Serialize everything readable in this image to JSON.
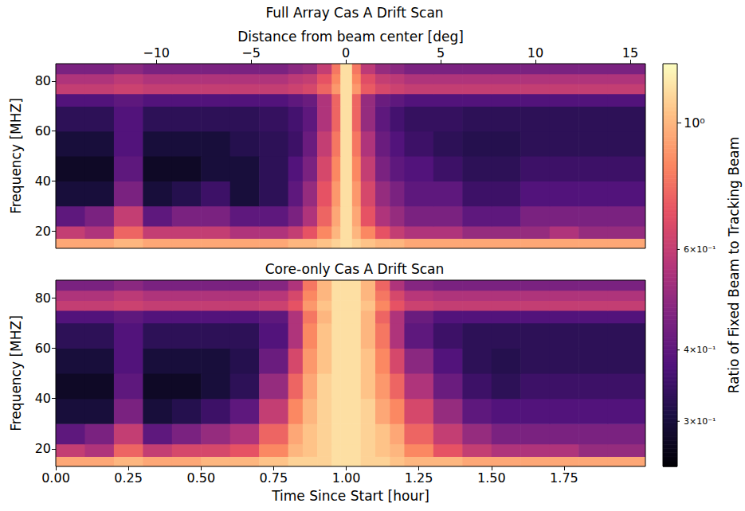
{
  "chart_data": [
    {
      "type": "heatmap",
      "title": "Full Array Cas A Drift Scan",
      "x2label": "Distance from beam center [deg]",
      "ylabel": "Frequency [MHZ]",
      "xlim": [
        0,
        2.03
      ],
      "x2lim": [
        -15.3,
        15.8
      ],
      "x2ticks": [
        {
          "value": -10,
          "label": "−10"
        },
        {
          "value": -5,
          "label": "−5"
        },
        0,
        5,
        10,
        15
      ],
      "ylim": [
        13,
        87
      ],
      "yticks": [
        20,
        40,
        60,
        80
      ],
      "x_edges": [
        0,
        0.1,
        0.2,
        0.3,
        0.4,
        0.5,
        0.6,
        0.7,
        0.8,
        0.85,
        0.9,
        0.95,
        0.98,
        1.02,
        1.05,
        1.1,
        1.15,
        1.2,
        1.3,
        1.4,
        1.5,
        1.6,
        1.7,
        1.8,
        1.9,
        2.03
      ],
      "y_edges": [
        13,
        17,
        22,
        30,
        40,
        50,
        60,
        70,
        75,
        79,
        83,
        87
      ],
      "values": [
        [
          0.95,
          0.95,
          1.0,
          0.95,
          0.95,
          0.95,
          0.95,
          0.95,
          1.0,
          1.0,
          1.05,
          1.1,
          1.15,
          1.1,
          1.05,
          1.0,
          1.0,
          0.95,
          0.95,
          0.95,
          0.95,
          0.95,
          0.95,
          0.95,
          0.95
        ],
        [
          0.6,
          0.55,
          0.75,
          0.6,
          0.6,
          0.6,
          0.55,
          0.55,
          0.6,
          0.7,
          0.85,
          1.0,
          1.15,
          1.0,
          0.85,
          0.7,
          0.6,
          0.55,
          0.55,
          0.5,
          0.5,
          0.5,
          0.55,
          0.5,
          0.5
        ],
        [
          0.4,
          0.45,
          0.6,
          0.4,
          0.45,
          0.45,
          0.4,
          0.4,
          0.45,
          0.55,
          0.75,
          0.95,
          1.15,
          0.95,
          0.7,
          0.55,
          0.5,
          0.45,
          0.45,
          0.4,
          0.4,
          0.45,
          0.45,
          0.45,
          0.45
        ],
        [
          0.3,
          0.3,
          0.45,
          0.3,
          0.32,
          0.35,
          0.3,
          0.33,
          0.4,
          0.5,
          0.7,
          0.9,
          1.15,
          0.9,
          0.65,
          0.5,
          0.45,
          0.4,
          0.4,
          0.35,
          0.35,
          0.38,
          0.38,
          0.38,
          0.38
        ],
        [
          0.28,
          0.28,
          0.4,
          0.28,
          0.28,
          0.3,
          0.3,
          0.33,
          0.38,
          0.45,
          0.65,
          0.85,
          1.15,
          0.85,
          0.6,
          0.45,
          0.4,
          0.38,
          0.35,
          0.33,
          0.33,
          0.35,
          0.35,
          0.35,
          0.35
        ],
        [
          0.3,
          0.3,
          0.38,
          0.3,
          0.3,
          0.3,
          0.32,
          0.33,
          0.35,
          0.42,
          0.6,
          0.8,
          1.15,
          0.8,
          0.55,
          0.42,
          0.38,
          0.35,
          0.33,
          0.32,
          0.32,
          0.33,
          0.33,
          0.33,
          0.33
        ],
        [
          0.33,
          0.33,
          0.38,
          0.33,
          0.33,
          0.33,
          0.33,
          0.34,
          0.36,
          0.4,
          0.55,
          0.75,
          1.15,
          0.75,
          0.5,
          0.4,
          0.36,
          0.34,
          0.34,
          0.33,
          0.33,
          0.33,
          0.33,
          0.33,
          0.33
        ],
        [
          0.38,
          0.38,
          0.4,
          0.38,
          0.38,
          0.38,
          0.38,
          0.38,
          0.4,
          0.42,
          0.55,
          0.75,
          1.15,
          0.75,
          0.5,
          0.42,
          0.4,
          0.38,
          0.38,
          0.38,
          0.38,
          0.38,
          0.38,
          0.38,
          0.38
        ],
        [
          0.6,
          0.6,
          0.62,
          0.6,
          0.6,
          0.6,
          0.6,
          0.6,
          0.62,
          0.65,
          0.75,
          0.9,
          1.15,
          0.9,
          0.72,
          0.65,
          0.62,
          0.6,
          0.6,
          0.6,
          0.6,
          0.6,
          0.6,
          0.6,
          0.6
        ],
        [
          0.55,
          0.55,
          0.58,
          0.55,
          0.55,
          0.55,
          0.55,
          0.55,
          0.58,
          0.6,
          0.7,
          0.85,
          1.15,
          0.85,
          0.68,
          0.6,
          0.58,
          0.55,
          0.55,
          0.55,
          0.55,
          0.55,
          0.55,
          0.55,
          0.55
        ],
        [
          0.45,
          0.45,
          0.48,
          0.45,
          0.45,
          0.45,
          0.45,
          0.45,
          0.48,
          0.5,
          0.6,
          0.8,
          1.15,
          0.8,
          0.58,
          0.5,
          0.48,
          0.45,
          0.45,
          0.45,
          0.45,
          0.45,
          0.45,
          0.45,
          0.45
        ]
      ],
      "colorbar": {
        "label": "Ratio of Fixed Beam to Tracking Beam",
        "log": true,
        "range": [
          0.25,
          1.27
        ],
        "ticks": [
          {
            "value": 1,
            "label": "10⁰"
          },
          {
            "value": 0.6,
            "label": "6×10⁻¹"
          },
          {
            "value": 0.4,
            "label": "4×10⁻¹"
          },
          {
            "value": 0.3,
            "label": "3×10⁻¹"
          }
        ]
      }
    },
    {
      "type": "heatmap",
      "title": "Core-only Cas A Drift Scan",
      "xlabel": "Time Since Start [hour]",
      "ylabel": "Frequency [MHZ]",
      "xlim": [
        0,
        2.03
      ],
      "xticks": [
        {
          "value": 0,
          "label": "0.00"
        },
        {
          "value": 0.25,
          "label": "0.25"
        },
        {
          "value": 0.5,
          "label": "0.50"
        },
        {
          "value": 0.75,
          "label": "0.75"
        },
        {
          "value": 1,
          "label": "1.00"
        },
        {
          "value": 1.25,
          "label": "1.25"
        },
        {
          "value": 1.5,
          "label": "1.50"
        },
        {
          "value": 1.75,
          "label": "1.75"
        }
      ],
      "ylim": [
        13,
        87
      ],
      "yticks": [
        20,
        40,
        60,
        80
      ],
      "x_edges": [
        0,
        0.1,
        0.2,
        0.3,
        0.4,
        0.5,
        0.6,
        0.7,
        0.8,
        0.85,
        0.9,
        0.95,
        0.98,
        1.02,
        1.05,
        1.1,
        1.15,
        1.2,
        1.3,
        1.4,
        1.5,
        1.6,
        1.7,
        1.8,
        1.9,
        2.03
      ],
      "y_edges": [
        13,
        17,
        22,
        30,
        40,
        50,
        60,
        70,
        75,
        79,
        83,
        87
      ],
      "values": [
        [
          0.95,
          0.95,
          1.0,
          0.95,
          0.95,
          1.0,
          1.0,
          1.05,
          1.1,
          1.1,
          1.1,
          1.15,
          1.15,
          1.15,
          1.1,
          1.1,
          1.05,
          1.0,
          1.0,
          0.95,
          0.95,
          0.95,
          0.95,
          0.95,
          0.95
        ],
        [
          0.6,
          0.55,
          0.75,
          0.6,
          0.65,
          0.65,
          0.7,
          0.85,
          1.0,
          1.05,
          1.1,
          1.15,
          1.15,
          1.15,
          1.1,
          1.05,
          1.0,
          0.85,
          0.7,
          0.6,
          0.55,
          0.55,
          0.55,
          0.5,
          0.5
        ],
        [
          0.4,
          0.45,
          0.6,
          0.4,
          0.45,
          0.5,
          0.55,
          0.75,
          0.95,
          1.05,
          1.1,
          1.15,
          1.15,
          1.15,
          1.1,
          1.05,
          0.95,
          0.75,
          0.6,
          0.5,
          0.45,
          0.45,
          0.45,
          0.45,
          0.45
        ],
        [
          0.3,
          0.3,
          0.45,
          0.3,
          0.32,
          0.35,
          0.4,
          0.6,
          0.85,
          1.0,
          1.1,
          1.15,
          1.15,
          1.15,
          1.1,
          0.95,
          0.85,
          0.65,
          0.5,
          0.4,
          0.38,
          0.38,
          0.38,
          0.38,
          0.38
        ],
        [
          0.28,
          0.28,
          0.4,
          0.28,
          0.28,
          0.3,
          0.33,
          0.5,
          0.75,
          0.95,
          1.1,
          1.15,
          1.15,
          1.15,
          1.05,
          0.9,
          0.75,
          0.55,
          0.42,
          0.35,
          0.33,
          0.35,
          0.35,
          0.35,
          0.35
        ],
        [
          0.3,
          0.3,
          0.38,
          0.3,
          0.3,
          0.3,
          0.32,
          0.42,
          0.65,
          0.9,
          1.05,
          1.15,
          1.15,
          1.15,
          1.05,
          0.85,
          0.65,
          0.48,
          0.38,
          0.33,
          0.32,
          0.33,
          0.33,
          0.33,
          0.33
        ],
        [
          0.33,
          0.33,
          0.38,
          0.33,
          0.33,
          0.33,
          0.33,
          0.38,
          0.55,
          0.85,
          1.05,
          1.15,
          1.15,
          1.15,
          1.0,
          0.8,
          0.55,
          0.4,
          0.35,
          0.33,
          0.33,
          0.33,
          0.33,
          0.33,
          0.33
        ],
        [
          0.38,
          0.38,
          0.4,
          0.38,
          0.38,
          0.38,
          0.38,
          0.4,
          0.55,
          0.8,
          1.0,
          1.15,
          1.15,
          1.15,
          1.0,
          0.75,
          0.55,
          0.42,
          0.38,
          0.38,
          0.38,
          0.38,
          0.38,
          0.38,
          0.38
        ],
        [
          0.6,
          0.6,
          0.62,
          0.6,
          0.6,
          0.6,
          0.6,
          0.62,
          0.7,
          0.9,
          1.05,
          1.15,
          1.15,
          1.15,
          1.05,
          0.85,
          0.7,
          0.62,
          0.6,
          0.6,
          0.6,
          0.6,
          0.6,
          0.6,
          0.6
        ],
        [
          0.55,
          0.55,
          0.58,
          0.55,
          0.55,
          0.55,
          0.55,
          0.57,
          0.65,
          0.85,
          1.0,
          1.15,
          1.15,
          1.15,
          1.0,
          0.8,
          0.65,
          0.57,
          0.55,
          0.55,
          0.55,
          0.55,
          0.55,
          0.55,
          0.55
        ],
        [
          0.45,
          0.45,
          0.48,
          0.45,
          0.45,
          0.45,
          0.45,
          0.47,
          0.55,
          0.8,
          1.0,
          1.15,
          1.15,
          1.15,
          1.0,
          0.75,
          0.55,
          0.47,
          0.45,
          0.45,
          0.45,
          0.45,
          0.45,
          0.45,
          0.45
        ]
      ]
    }
  ]
}
